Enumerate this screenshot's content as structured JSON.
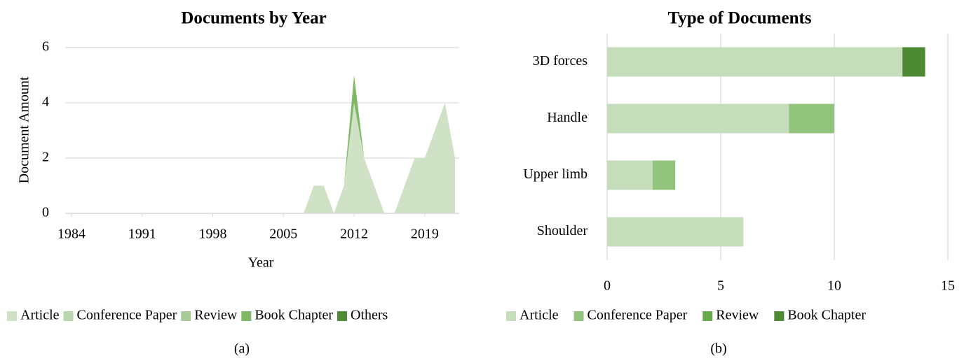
{
  "chart_data": [
    {
      "type": "area",
      "title": "Documents by Year",
      "caption": "(a)",
      "x_label": "Year",
      "y_label": "Document Amount",
      "x": [
        1984,
        1985,
        1986,
        1987,
        1988,
        1989,
        1990,
        1991,
        1992,
        1993,
        1994,
        1995,
        1996,
        1997,
        1998,
        1999,
        2000,
        2001,
        2002,
        2003,
        2004,
        2005,
        2006,
        2007,
        2008,
        2009,
        2010,
        2011,
        2012,
        2013,
        2014,
        2015,
        2016,
        2017,
        2018,
        2019,
        2020,
        2021,
        2022
      ],
      "series": [
        {
          "name": "Article",
          "color": "#cfe2c6",
          "values": [
            0,
            0,
            0,
            0,
            0,
            0,
            0,
            0,
            0,
            0,
            0,
            0,
            0,
            0,
            0,
            0,
            0,
            0,
            0,
            0,
            0,
            0,
            0,
            0,
            1,
            1,
            0,
            1,
            4,
            2,
            1,
            0,
            0,
            1,
            2,
            2,
            3,
            4,
            2
          ]
        },
        {
          "name": "Conference Paper",
          "color": "#bcd7b0",
          "values": [
            0,
            0,
            0,
            0,
            0,
            0,
            0,
            0,
            0,
            0,
            0,
            0,
            0,
            0,
            0,
            0,
            0,
            0,
            0,
            0,
            0,
            0,
            0,
            0,
            0,
            0,
            0,
            0,
            0,
            0,
            0,
            0,
            0,
            0,
            0,
            0,
            0,
            0,
            0
          ]
        },
        {
          "name": "Review",
          "color": "#a7cb96",
          "values": [
            0,
            0,
            0,
            0,
            0,
            0,
            0,
            0,
            0,
            0,
            0,
            0,
            0,
            0,
            0,
            0,
            0,
            0,
            0,
            0,
            0,
            0,
            0,
            0,
            0,
            0,
            0,
            0,
            0,
            0,
            0,
            0,
            0,
            0,
            0,
            0,
            0,
            0,
            0
          ]
        },
        {
          "name": "Book Chapter",
          "color": "#80b866",
          "values": [
            0,
            0,
            0,
            0,
            0,
            0,
            0,
            0,
            0,
            0,
            0,
            0,
            0,
            0,
            0,
            0,
            0,
            0,
            0,
            0,
            0,
            0,
            0,
            0,
            0,
            0,
            0,
            0,
            1,
            0,
            0,
            0,
            0,
            0,
            0,
            0,
            0,
            0,
            0
          ]
        },
        {
          "name": "Others",
          "color": "#4f8a35",
          "values": [
            0,
            0,
            0,
            0,
            0,
            0,
            0,
            0,
            0,
            0,
            0,
            0,
            0,
            0,
            0,
            0,
            0,
            0,
            0,
            0,
            0,
            0,
            0,
            0,
            0,
            0,
            0,
            0,
            0,
            0,
            0,
            0,
            0,
            0,
            0,
            0,
            0,
            0,
            0
          ]
        }
      ],
      "xlim": [
        1984,
        2022
      ],
      "xticks": [
        1984,
        1991,
        1998,
        2005,
        2012,
        2019
      ],
      "ylim": [
        0,
        6
      ],
      "yticks": [
        0,
        2,
        4,
        6
      ],
      "grid": true,
      "legend": "bottom"
    },
    {
      "type": "hbar",
      "title": "Type of Documents",
      "caption": "(b)",
      "categories": [
        "3D forces",
        "Handle",
        "Upper limb",
        "Shoulder"
      ],
      "series": [
        {
          "name": "Article",
          "color": "#c6ddbb",
          "values": [
            13,
            8,
            2,
            6
          ]
        },
        {
          "name": "Conference Paper",
          "color": "#93c47d",
          "values": [
            0,
            2,
            1,
            0
          ]
        },
        {
          "name": "Review",
          "color": "#6aaa4f",
          "values": [
            0,
            0,
            0,
            0
          ]
        },
        {
          "name": "Book Chapter",
          "color": "#4e8a34",
          "values": [
            1,
            0,
            0,
            0
          ]
        }
      ],
      "xlim": [
        0,
        15
      ],
      "xticks": [
        0,
        5,
        10,
        15
      ],
      "grid": true,
      "legend": "bottom"
    }
  ]
}
